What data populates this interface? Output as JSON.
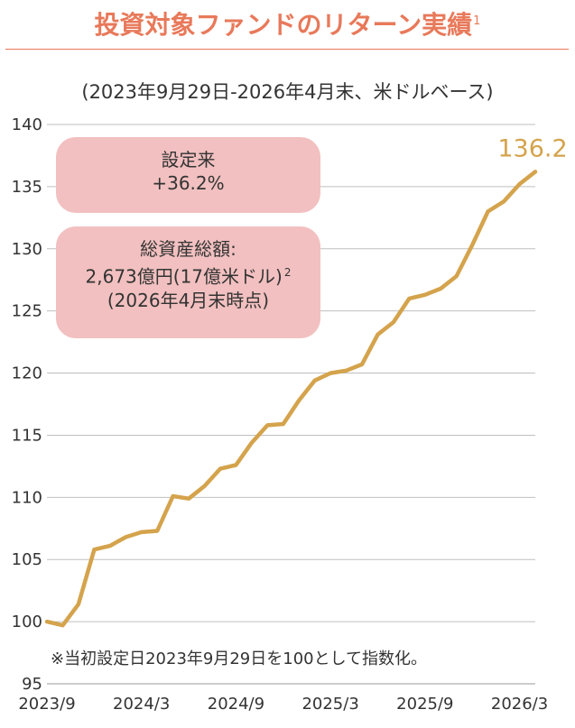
{
  "header": {
    "title": "投資対象ファンドのリターン実績",
    "title_footnote": "1",
    "subtitle": "(2023年9月29日-2026年4月末、米ドルベース)"
  },
  "badges": {
    "change_label": "設定来",
    "change_value": "+36.2%",
    "aum_label": "総資産総額:",
    "aum_value": "2,673億円(17億米ドル)",
    "aum_footnote": "2",
    "aum_date": "(2026年4月末時点)"
  },
  "note": "※当初設定日2023年9月29日を100として指数化。",
  "colors": {
    "line": "#d4a34c",
    "title": "#e8795a",
    "badge": "#f2c0c0",
    "grid": "#bfbfbf"
  },
  "chart_data": {
    "type": "line",
    "title": "投資対象ファンドのリターン実績",
    "ylim": [
      95,
      140
    ],
    "yticks": [
      95,
      100,
      105,
      110,
      115,
      120,
      125,
      130,
      135,
      140
    ],
    "xtick_labels": [
      "2023/9",
      "2024/3",
      "2024/9",
      "2025/3",
      "2025/9",
      "2026/3"
    ],
    "xtick_months": [
      0,
      6,
      12,
      18,
      24,
      30
    ],
    "x_months": [
      0,
      1,
      2,
      3,
      4,
      5,
      6,
      7,
      8,
      9,
      10,
      11,
      12,
      13,
      14,
      15,
      16,
      17,
      18,
      19,
      20,
      21,
      22,
      23,
      24,
      25,
      26,
      27,
      28,
      29,
      30,
      31
    ],
    "values": [
      100.0,
      99.7,
      101.4,
      105.8,
      106.1,
      106.8,
      107.2,
      107.3,
      110.1,
      109.9,
      110.9,
      112.3,
      112.6,
      114.4,
      115.8,
      115.9,
      117.8,
      119.4,
      120.0,
      120.2,
      120.7,
      123.1,
      124.1,
      126.0,
      126.3,
      126.8,
      127.8,
      130.3,
      133.0,
      133.8,
      135.2,
      136.2
    ],
    "end_label": "136.2",
    "grid": true
  }
}
